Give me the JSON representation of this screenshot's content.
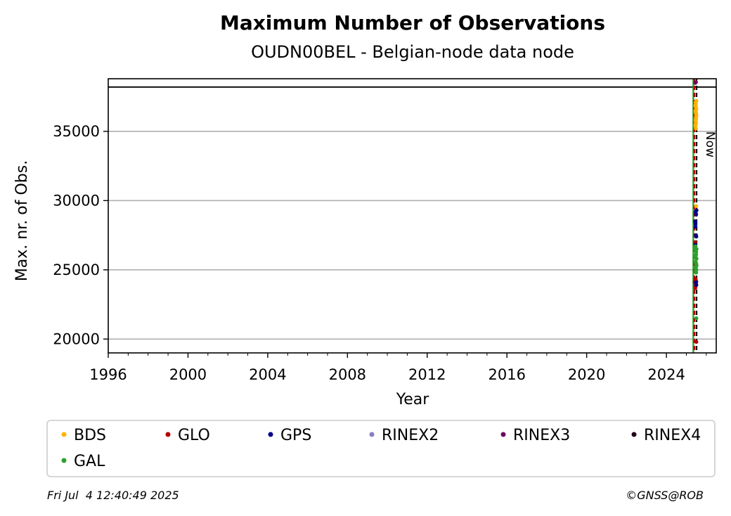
{
  "chart_data": {
    "type": "scatter",
    "title": "Maximum Number of Observations",
    "subtitle": "OUDN00BEL - Belgian-node data node",
    "xlabel": "Year",
    "ylabel": "Max. nr. of Obs.",
    "xlim": [
      1996,
      2026.5
    ],
    "ylim": [
      19000,
      38800
    ],
    "x_ticks": [
      1996,
      2000,
      2004,
      2008,
      2012,
      2016,
      2020,
      2024
    ],
    "y_ticks": [
      20000,
      25000,
      30000,
      35000
    ],
    "grid": "horizontal",
    "reference_lines": [
      {
        "label": "",
        "y": 38200,
        "color": "#000000",
        "style": "solid"
      },
      {
        "label": "",
        "x": 2025.35,
        "color": "#2ca02c",
        "style": "solid"
      },
      {
        "label": "",
        "x": 2025.4,
        "color": "#b30000",
        "style": "dashed"
      },
      {
        "label": "Now",
        "x": 2025.51,
        "color": "#000000",
        "style": "dashed"
      }
    ],
    "legend_position": "bottom",
    "series": [
      {
        "name": "BDS",
        "color": "#ffb300",
        "x": [
          2025.46,
          2025.47,
          2025.48,
          2025.49,
          2025.5,
          2025.46,
          2025.47,
          2025.48,
          2025.49,
          2025.5,
          2025.46,
          2025.47,
          2025.48,
          2025.49,
          2025.5,
          2025.46,
          2025.47,
          2025.48,
          2025.49,
          2025.5,
          2025.49
        ],
        "y": [
          35400,
          35700,
          36000,
          36300,
          36600,
          36900,
          37100,
          35200,
          35600,
          36100,
          36500,
          36800,
          37000,
          35900,
          36200,
          35500,
          35800,
          36400,
          36700,
          37200,
          29600
        ]
      },
      {
        "name": "GLO",
        "color": "#b30000",
        "x": [
          2025.42,
          2025.44,
          2025.46,
          2025.48,
          2025.5,
          2025.45,
          2025.47,
          2025.5,
          2025.44,
          2025.46,
          2025.48
        ],
        "y": [
          24100,
          24200,
          24300,
          24000,
          24150,
          23700,
          24250,
          19800,
          27000,
          24350,
          24050
        ]
      },
      {
        "name": "GPS",
        "color": "#00008b",
        "x": [
          2025.44,
          2025.46,
          2025.48,
          2025.5,
          2025.45,
          2025.47,
          2025.49,
          2025.51,
          2025.46,
          2025.48,
          2025.5
        ],
        "y": [
          28500,
          28300,
          27500,
          27400,
          26800,
          29200,
          29000,
          29300,
          28100,
          24100,
          23900
        ]
      },
      {
        "name": "RINEX2",
        "color": "#8a7fbf",
        "x": [],
        "y": []
      },
      {
        "name": "RINEX3",
        "color": "#6b0b5e",
        "x": [
          2025.45,
          2025.48
        ],
        "y": [
          38500,
          38550
        ]
      },
      {
        "name": "RINEX4",
        "color": "#22001a",
        "x": [],
        "y": []
      },
      {
        "name": "GAL",
        "color": "#2ca02c",
        "x": [
          2025.45,
          2025.47,
          2025.49,
          2025.51,
          2025.45,
          2025.47,
          2025.49,
          2025.51,
          2025.46,
          2025.48,
          2025.5,
          2025.46,
          2025.48,
          2025.5,
          2025.47,
          2025.49,
          2025.51,
          2025.5,
          2025.46
        ],
        "y": [
          26500,
          26400,
          26300,
          26500,
          26000,
          25900,
          26100,
          25800,
          25600,
          25500,
          25400,
          25200,
          25100,
          25000,
          24900,
          24800,
          25300,
          21500,
          26700
        ]
      }
    ]
  },
  "footer": {
    "timestamp": "Fri Jul  4 12:40:49 2025",
    "copyright": "©GNSS@ROB"
  }
}
